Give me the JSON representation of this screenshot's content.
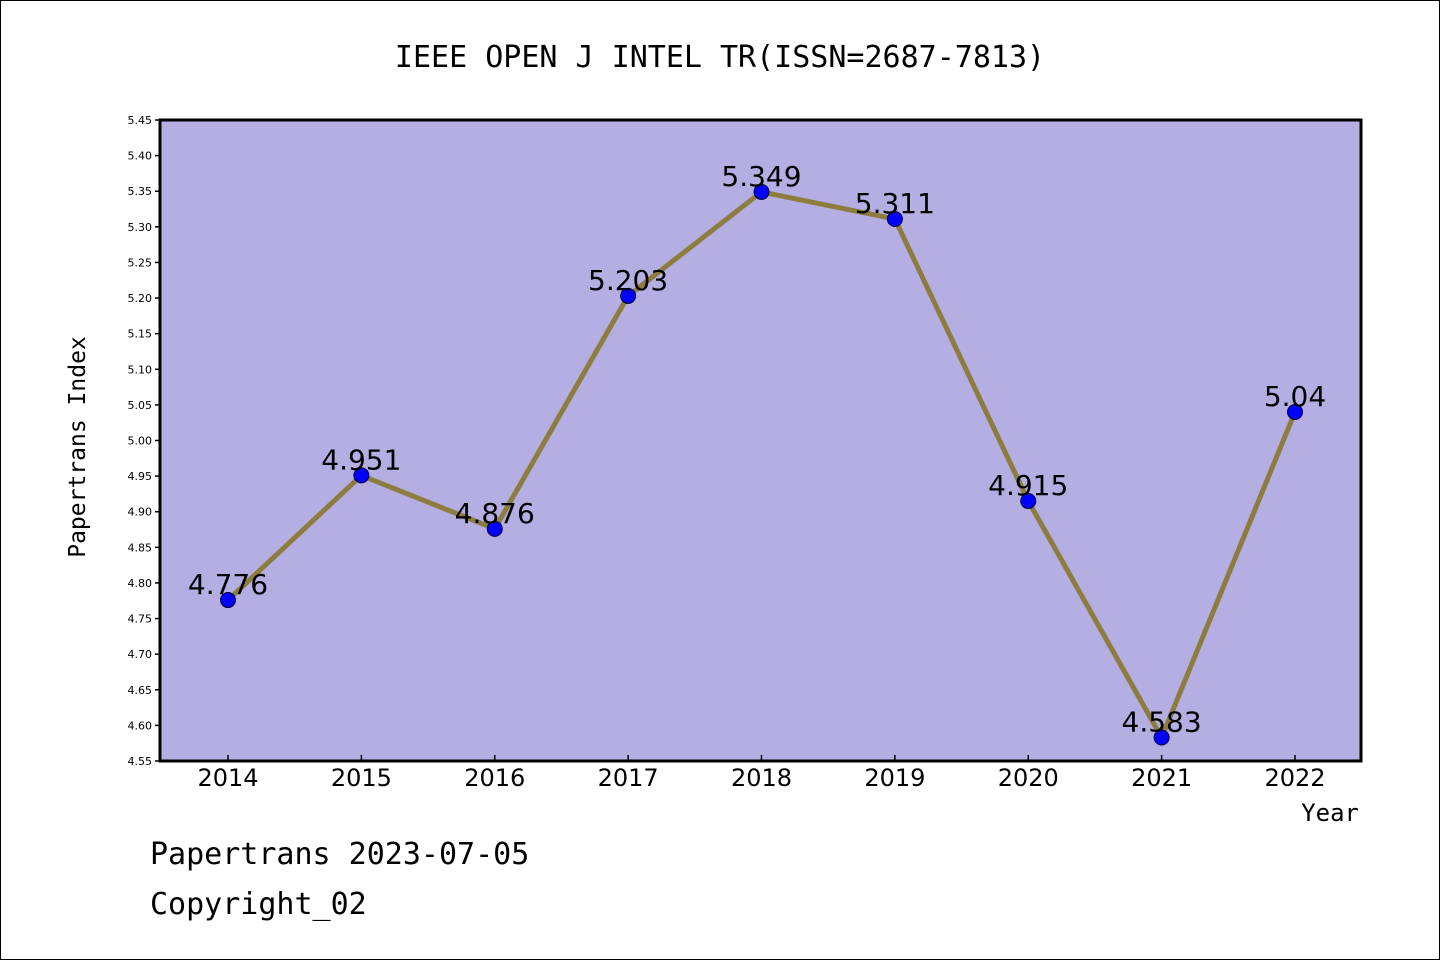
{
  "chart_data": {
    "type": "line",
    "title": "IEEE OPEN J INTEL TR(ISSN=2687-7813)",
    "xlabel": "Year",
    "ylabel": "Papertrans Index",
    "categories": [
      "2014",
      "2015",
      "2016",
      "2017",
      "2018",
      "2019",
      "2020",
      "2021",
      "2022"
    ],
    "values": [
      4.776,
      4.951,
      4.876,
      5.203,
      5.349,
      5.311,
      4.915,
      4.583,
      5.04
    ],
    "data_labels": [
      "4.776",
      "4.951",
      "4.876",
      "5.203",
      "5.349",
      "5.311",
      "4.915",
      "4.583",
      "5.04"
    ],
    "ylim": [
      4.55,
      5.45
    ],
    "yticks": [
      "4.55",
      "4.60",
      "4.65",
      "4.70",
      "4.75",
      "4.80",
      "4.85",
      "4.90",
      "4.95",
      "5.00",
      "5.05",
      "5.10",
      "5.15",
      "5.20",
      "5.25",
      "5.30",
      "5.35",
      "5.40",
      "5.45"
    ],
    "grid": false,
    "plot_background": "#b5aee2",
    "line_color": "#8c7d3f",
    "marker_color": "#0000ff"
  },
  "footer": {
    "line1": "Papertrans 2023-07-05",
    "line2": "Copyright_02"
  }
}
